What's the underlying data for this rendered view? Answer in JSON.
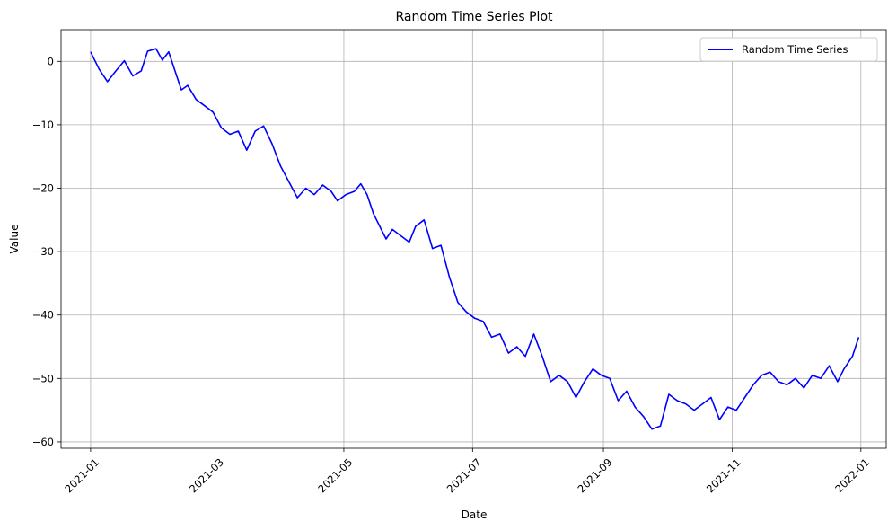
{
  "chart_data": {
    "type": "line",
    "title": "Random Time Series Plot",
    "xlabel": "Date",
    "ylabel": "Value",
    "xlim": [
      "2020-12-18",
      "2022-01-13"
    ],
    "ylim": [
      -61,
      5
    ],
    "grid": true,
    "legend_position": "top-right",
    "x_ticks": [
      "2021-01",
      "2021-03",
      "2021-05",
      "2021-07",
      "2021-09",
      "2021-11",
      "2022-01"
    ],
    "y_ticks": [
      0,
      -10,
      -20,
      -30,
      -40,
      -50,
      -60
    ],
    "series": [
      {
        "name": "Random Time Series",
        "color": "#0000ff",
        "points": [
          [
            "2021-01-01",
            1.5
          ],
          [
            "2021-01-05",
            -1.2
          ],
          [
            "2021-01-09",
            -3.2
          ],
          [
            "2021-01-13",
            -1.5
          ],
          [
            "2021-01-17",
            0.1
          ],
          [
            "2021-01-21",
            -2.3
          ],
          [
            "2021-01-25",
            -1.5
          ],
          [
            "2021-01-28",
            1.6
          ],
          [
            "2021-02-01",
            2.0
          ],
          [
            "2021-02-04",
            0.2
          ],
          [
            "2021-02-07",
            1.5
          ],
          [
            "2021-02-10",
            -1.5
          ],
          [
            "2021-02-13",
            -4.5
          ],
          [
            "2021-02-16",
            -3.8
          ],
          [
            "2021-02-20",
            -6.0
          ],
          [
            "2021-02-24",
            -7.0
          ],
          [
            "2021-02-28",
            -8.0
          ],
          [
            "2021-03-04",
            -10.5
          ],
          [
            "2021-03-08",
            -11.5
          ],
          [
            "2021-03-12",
            -11.0
          ],
          [
            "2021-03-16",
            -14.0
          ],
          [
            "2021-03-20",
            -11.0
          ],
          [
            "2021-03-24",
            -10.2
          ],
          [
            "2021-03-28",
            -13.0
          ],
          [
            "2021-04-01",
            -16.5
          ],
          [
            "2021-04-05",
            -19.0
          ],
          [
            "2021-04-09",
            -21.5
          ],
          [
            "2021-04-13",
            -20.0
          ],
          [
            "2021-04-17",
            -21.0
          ],
          [
            "2021-04-21",
            -19.5
          ],
          [
            "2021-04-25",
            -20.5
          ],
          [
            "2021-04-28",
            -22.0
          ],
          [
            "2021-05-02",
            -21.0
          ],
          [
            "2021-05-06",
            -20.5
          ],
          [
            "2021-05-09",
            -19.3
          ],
          [
            "2021-05-12",
            -21.0
          ],
          [
            "2021-05-15",
            -24.0
          ],
          [
            "2021-05-18",
            -26.0
          ],
          [
            "2021-05-21",
            -28.0
          ],
          [
            "2021-05-24",
            -26.5
          ],
          [
            "2021-05-28",
            -27.5
          ],
          [
            "2021-06-01",
            -28.5
          ],
          [
            "2021-06-04",
            -26.0
          ],
          [
            "2021-06-08",
            -25.0
          ],
          [
            "2021-06-12",
            -29.5
          ],
          [
            "2021-06-16",
            -29.0
          ],
          [
            "2021-06-20",
            -34.0
          ],
          [
            "2021-06-24",
            -38.0
          ],
          [
            "2021-06-28",
            -39.5
          ],
          [
            "2021-07-02",
            -40.5
          ],
          [
            "2021-07-06",
            -41.0
          ],
          [
            "2021-07-10",
            -43.5
          ],
          [
            "2021-07-14",
            -43.0
          ],
          [
            "2021-07-18",
            -46.0
          ],
          [
            "2021-07-22",
            -45.0
          ],
          [
            "2021-07-26",
            -46.5
          ],
          [
            "2021-07-30",
            -43.0
          ],
          [
            "2021-08-03",
            -46.5
          ],
          [
            "2021-08-07",
            -50.5
          ],
          [
            "2021-08-11",
            -49.5
          ],
          [
            "2021-08-15",
            -50.5
          ],
          [
            "2021-08-19",
            -53.0
          ],
          [
            "2021-08-23",
            -50.5
          ],
          [
            "2021-08-27",
            -48.5
          ],
          [
            "2021-08-31",
            -49.5
          ],
          [
            "2021-09-04",
            -50.0
          ],
          [
            "2021-09-08",
            -53.5
          ],
          [
            "2021-09-12",
            -52.0
          ],
          [
            "2021-09-16",
            -54.5
          ],
          [
            "2021-09-20",
            -56.0
          ],
          [
            "2021-09-24",
            -58.0
          ],
          [
            "2021-09-28",
            -57.5
          ],
          [
            "2021-10-02",
            -52.5
          ],
          [
            "2021-10-06",
            -53.5
          ],
          [
            "2021-10-10",
            -54.0
          ],
          [
            "2021-10-14",
            -55.0
          ],
          [
            "2021-10-18",
            -54.0
          ],
          [
            "2021-10-22",
            -53.0
          ],
          [
            "2021-10-26",
            -56.5
          ],
          [
            "2021-10-30",
            -54.5
          ],
          [
            "2021-11-03",
            -55.0
          ],
          [
            "2021-11-07",
            -53.0
          ],
          [
            "2021-11-11",
            -51.0
          ],
          [
            "2021-11-15",
            -49.5
          ],
          [
            "2021-11-19",
            -49.0
          ],
          [
            "2021-11-23",
            -50.5
          ],
          [
            "2021-11-27",
            -51.0
          ],
          [
            "2021-12-01",
            -50.0
          ],
          [
            "2021-12-05",
            -51.5
          ],
          [
            "2021-12-09",
            -49.5
          ],
          [
            "2021-12-13",
            -50.0
          ],
          [
            "2021-12-17",
            -48.0
          ],
          [
            "2021-12-21",
            -50.5
          ],
          [
            "2021-12-24",
            -48.5
          ],
          [
            "2021-12-28",
            -46.5
          ],
          [
            "2021-12-31",
            -43.5
          ]
        ]
      }
    ]
  }
}
